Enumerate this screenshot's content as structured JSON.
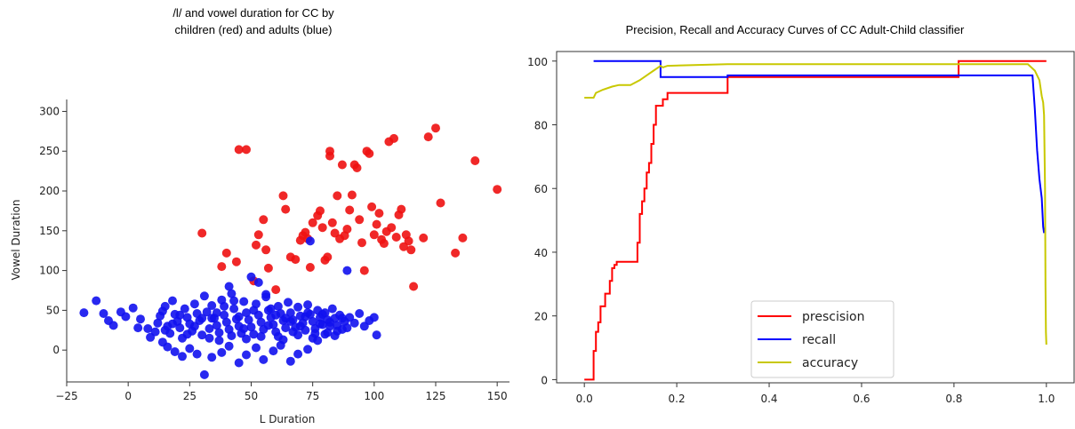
{
  "chart_data": [
    {
      "type": "scatter",
      "title_line1": "/l/ and vowel duration for CC by",
      "title_line2": "children (red) and adults (blue)",
      "xlabel": "L Duration",
      "ylabel": "Vowel Duration",
      "xlim": [
        -25,
        155
      ],
      "ylim": [
        -40,
        315
      ],
      "xticks": [
        -25,
        0,
        25,
        50,
        75,
        100,
        125,
        150
      ],
      "yticks": [
        0,
        50,
        100,
        150,
        200,
        250,
        300
      ],
      "grid": false,
      "series": [
        {
          "color": "#ee1111",
          "points": [
            [
              30,
              147
            ],
            [
              38,
              105
            ],
            [
              40,
              122
            ],
            [
              44,
              111
            ],
            [
              45,
              252
            ],
            [
              48,
              252
            ],
            [
              51,
              87
            ],
            [
              52,
              132
            ],
            [
              53,
              145
            ],
            [
              55,
              164
            ],
            [
              56,
              126
            ],
            [
              57,
              103
            ],
            [
              60,
              76
            ],
            [
              63,
              194
            ],
            [
              64,
              177
            ],
            [
              66,
              117
            ],
            [
              68,
              114
            ],
            [
              70,
              138
            ],
            [
              71,
              144
            ],
            [
              72,
              148
            ],
            [
              73,
              140
            ],
            [
              74,
              104
            ],
            [
              75,
              160
            ],
            [
              77,
              169
            ],
            [
              78,
              175
            ],
            [
              79,
              154
            ],
            [
              80,
              113
            ],
            [
              81,
              117
            ],
            [
              82,
              244
            ],
            [
              82,
              250
            ],
            [
              83,
              160
            ],
            [
              84,
              147
            ],
            [
              85,
              194
            ],
            [
              86,
              140
            ],
            [
              87,
              233
            ],
            [
              88,
              144
            ],
            [
              89,
              152
            ],
            [
              90,
              176
            ],
            [
              91,
              195
            ],
            [
              92,
              233
            ],
            [
              93,
              229
            ],
            [
              94,
              164
            ],
            [
              95,
              135
            ],
            [
              96,
              100
            ],
            [
              97,
              250
            ],
            [
              98,
              247
            ],
            [
              99,
              180
            ],
            [
              100,
              145
            ],
            [
              101,
              158
            ],
            [
              102,
              172
            ],
            [
              103,
              139
            ],
            [
              104,
              134
            ],
            [
              105,
              149
            ],
            [
              106,
              262
            ],
            [
              107,
              154
            ],
            [
              108,
              266
            ],
            [
              109,
              142
            ],
            [
              110,
              170
            ],
            [
              111,
              177
            ],
            [
              112,
              130
            ],
            [
              113,
              145
            ],
            [
              114,
              137
            ],
            [
              115,
              126
            ],
            [
              116,
              80
            ],
            [
              120,
              141
            ],
            [
              122,
              268
            ],
            [
              125,
              279
            ],
            [
              127,
              185
            ],
            [
              133,
              122
            ],
            [
              136,
              141
            ],
            [
              141,
              238
            ],
            [
              150,
              202
            ]
          ]
        },
        {
          "color": "#1111ee",
          "points": [
            [
              -18,
              47
            ],
            [
              -13,
              62
            ],
            [
              -10,
              46
            ],
            [
              -8,
              37
            ],
            [
              -6,
              31
            ],
            [
              -3,
              48
            ],
            [
              -1,
              42
            ],
            [
              2,
              53
            ],
            [
              4,
              28
            ],
            [
              5,
              39
            ],
            [
              8,
              27
            ],
            [
              9,
              16
            ],
            [
              11,
              23
            ],
            [
              12,
              34
            ],
            [
              13,
              43
            ],
            [
              14,
              49
            ],
            [
              15,
              55
            ],
            [
              16,
              30
            ],
            [
              17,
              21
            ],
            [
              18,
              62
            ],
            [
              19,
              45
            ],
            [
              20,
              36
            ],
            [
              21,
              28
            ],
            [
              22,
              15
            ],
            [
              23,
              52
            ],
            [
              24,
              41
            ],
            [
              25,
              33
            ],
            [
              26,
              24
            ],
            [
              27,
              58
            ],
            [
              28,
              46
            ],
            [
              29,
              37
            ],
            [
              30,
              19
            ],
            [
              31,
              68
            ],
            [
              32,
              48
            ],
            [
              33,
              27
            ],
            [
              34,
              56
            ],
            [
              35,
              40
            ],
            [
              36,
              31
            ],
            [
              37,
              22
            ],
            [
              38,
              63
            ],
            [
              39,
              44
            ],
            [
              40,
              35
            ],
            [
              41,
              26
            ],
            [
              42,
              71
            ],
            [
              43,
              52
            ],
            [
              44,
              39
            ],
            [
              45,
              30
            ],
            [
              46,
              21
            ],
            [
              47,
              61
            ],
            [
              48,
              47
            ],
            [
              49,
              38
            ],
            [
              50,
              29
            ],
            [
              51,
              20
            ],
            [
              52,
              58
            ],
            [
              53,
              44
            ],
            [
              54,
              35
            ],
            [
              55,
              26
            ],
            [
              56,
              67
            ],
            [
              57,
              50
            ],
            [
              58,
              41
            ],
            [
              59,
              32
            ],
            [
              60,
              23
            ],
            [
              61,
              55
            ],
            [
              62,
              46
            ],
            [
              63,
              37
            ],
            [
              64,
              28
            ],
            [
              65,
              60
            ],
            [
              66,
              47
            ],
            [
              67,
              38
            ],
            [
              68,
              29
            ],
            [
              69,
              54
            ],
            [
              70,
              43
            ],
            [
              71,
              34
            ],
            [
              72,
              25
            ],
            [
              73,
              57
            ],
            [
              74,
              45
            ],
            [
              75,
              36
            ],
            [
              76,
              27
            ],
            [
              77,
              50
            ],
            [
              78,
              41
            ],
            [
              79,
              32
            ],
            [
              80,
              47
            ],
            [
              81,
              38
            ],
            [
              82,
              30
            ],
            [
              83,
              52
            ],
            [
              84,
              40
            ],
            [
              85,
              31
            ],
            [
              86,
              44
            ],
            [
              88,
              36
            ],
            [
              89,
              28
            ],
            [
              90,
              41
            ],
            [
              92,
              34
            ],
            [
              94,
              46
            ],
            [
              96,
              30
            ],
            [
              98,
              37
            ],
            [
              100,
              41
            ],
            [
              101,
              19
            ],
            [
              14,
              10
            ],
            [
              16,
              4
            ],
            [
              19,
              -2
            ],
            [
              22,
              -8
            ],
            [
              25,
              2
            ],
            [
              28,
              -5
            ],
            [
              31,
              -31
            ],
            [
              34,
              -9
            ],
            [
              38,
              -3
            ],
            [
              41,
              5
            ],
            [
              45,
              -16
            ],
            [
              48,
              -6
            ],
            [
              52,
              3
            ],
            [
              55,
              -12
            ],
            [
              59,
              -1
            ],
            [
              62,
              6
            ],
            [
              66,
              -14
            ],
            [
              69,
              -5
            ],
            [
              73,
              1
            ],
            [
              77,
              12
            ],
            [
              80,
              20
            ],
            [
              15,
              25
            ],
            [
              18,
              33
            ],
            [
              21,
              44
            ],
            [
              24,
              20
            ],
            [
              27,
              30
            ],
            [
              30,
              40
            ],
            [
              33,
              15
            ],
            [
              36,
              47
            ],
            [
              39,
              55
            ],
            [
              42,
              18
            ],
            [
              45,
              42
            ],
            [
              48,
              14
            ],
            [
              51,
              50
            ],
            [
              54,
              17
            ],
            [
              57,
              31
            ],
            [
              60,
              44
            ],
            [
              63,
              13
            ],
            [
              66,
              36
            ],
            [
              69,
              19
            ],
            [
              72,
              42
            ],
            [
              75,
              15
            ],
            [
              78,
              33
            ],
            [
              81,
              22
            ],
            [
              84,
              18
            ],
            [
              87,
              26
            ],
            [
              41,
              80
            ],
            [
              50,
              92
            ],
            [
              53,
              85
            ],
            [
              56,
              70
            ],
            [
              74,
              137
            ],
            [
              89,
              100
            ],
            [
              34,
              40
            ],
            [
              37,
              12
            ],
            [
              43,
              62
            ],
            [
              47,
              27
            ],
            [
              58,
              52
            ],
            [
              61,
              17
            ],
            [
              64,
              40
            ],
            [
              67,
              23
            ],
            [
              70,
              30
            ],
            [
              73,
              47
            ],
            [
              76,
              21
            ],
            [
              79,
              45
            ],
            [
              82,
              35
            ],
            [
              85,
              24
            ],
            [
              87,
              40
            ]
          ]
        }
      ]
    },
    {
      "type": "line",
      "title": "Precision, Recall and Accuracy   Curves of CC Adult-Child classifier",
      "xlim": [
        -0.06,
        1.06
      ],
      "ylim": [
        -1,
        103
      ],
      "xticks": [
        "0.0",
        "0.2",
        "0.4",
        "0.6",
        "0.8",
        "1.0"
      ],
      "yticks": [
        "0",
        "20",
        "40",
        "60",
        "80",
        "100"
      ],
      "grid": false,
      "legend_position": "lower center",
      "series": [
        {
          "name": "prescision",
          "color": "#ff0000",
          "x": [
            0.0,
            0.02,
            0.02,
            0.025,
            0.025,
            0.03,
            0.03,
            0.035,
            0.035,
            0.045,
            0.045,
            0.055,
            0.055,
            0.06,
            0.06,
            0.065,
            0.065,
            0.07,
            0.07,
            0.085,
            0.085,
            0.115,
            0.115,
            0.12,
            0.12,
            0.125,
            0.125,
            0.13,
            0.13,
            0.135,
            0.135,
            0.14,
            0.14,
            0.145,
            0.145,
            0.15,
            0.15,
            0.155,
            0.155,
            0.17,
            0.17,
            0.18,
            0.18,
            0.31,
            0.31,
            0.81,
            0.81,
            1.0
          ],
          "y": [
            0.0,
            0.0,
            9,
            9,
            15,
            15,
            18,
            18,
            23,
            23,
            27,
            27,
            31,
            31,
            35,
            35,
            36,
            36,
            37,
            37,
            37,
            37,
            43,
            43,
            52,
            52,
            56,
            56,
            60,
            60,
            65,
            65,
            68,
            68,
            74,
            74,
            80,
            80,
            86,
            86,
            88,
            88,
            90,
            90,
            95,
            95,
            100,
            100
          ]
        },
        {
          "name": "recall",
          "color": "#0000ff",
          "x": [
            0.02,
            0.165,
            0.165,
            0.31,
            0.31,
            0.97,
            0.975,
            0.98,
            0.985,
            0.99,
            0.993,
            0.995
          ],
          "y": [
            100,
            100,
            95,
            95,
            95.5,
            95.5,
            85,
            72,
            63,
            57,
            48,
            46
          ]
        },
        {
          "name": "accuracy",
          "color": "#c8c800",
          "x": [
            0.0,
            0.02,
            0.025,
            0.04,
            0.06,
            0.075,
            0.1,
            0.12,
            0.13,
            0.14,
            0.15,
            0.16,
            0.165,
            0.17,
            0.18,
            0.31,
            0.81,
            0.96,
            0.975,
            0.985,
            0.99,
            0.993,
            0.995,
            0.997,
            0.998,
            0.999,
            1.0
          ],
          "y": [
            88.5,
            88.5,
            90,
            91,
            92,
            92.5,
            92.5,
            94,
            95,
            96,
            97,
            98,
            98.5,
            98,
            98.5,
            99,
            99,
            99,
            97,
            94,
            89,
            87,
            83,
            60,
            30,
            15,
            11
          ]
        }
      ]
    }
  ]
}
